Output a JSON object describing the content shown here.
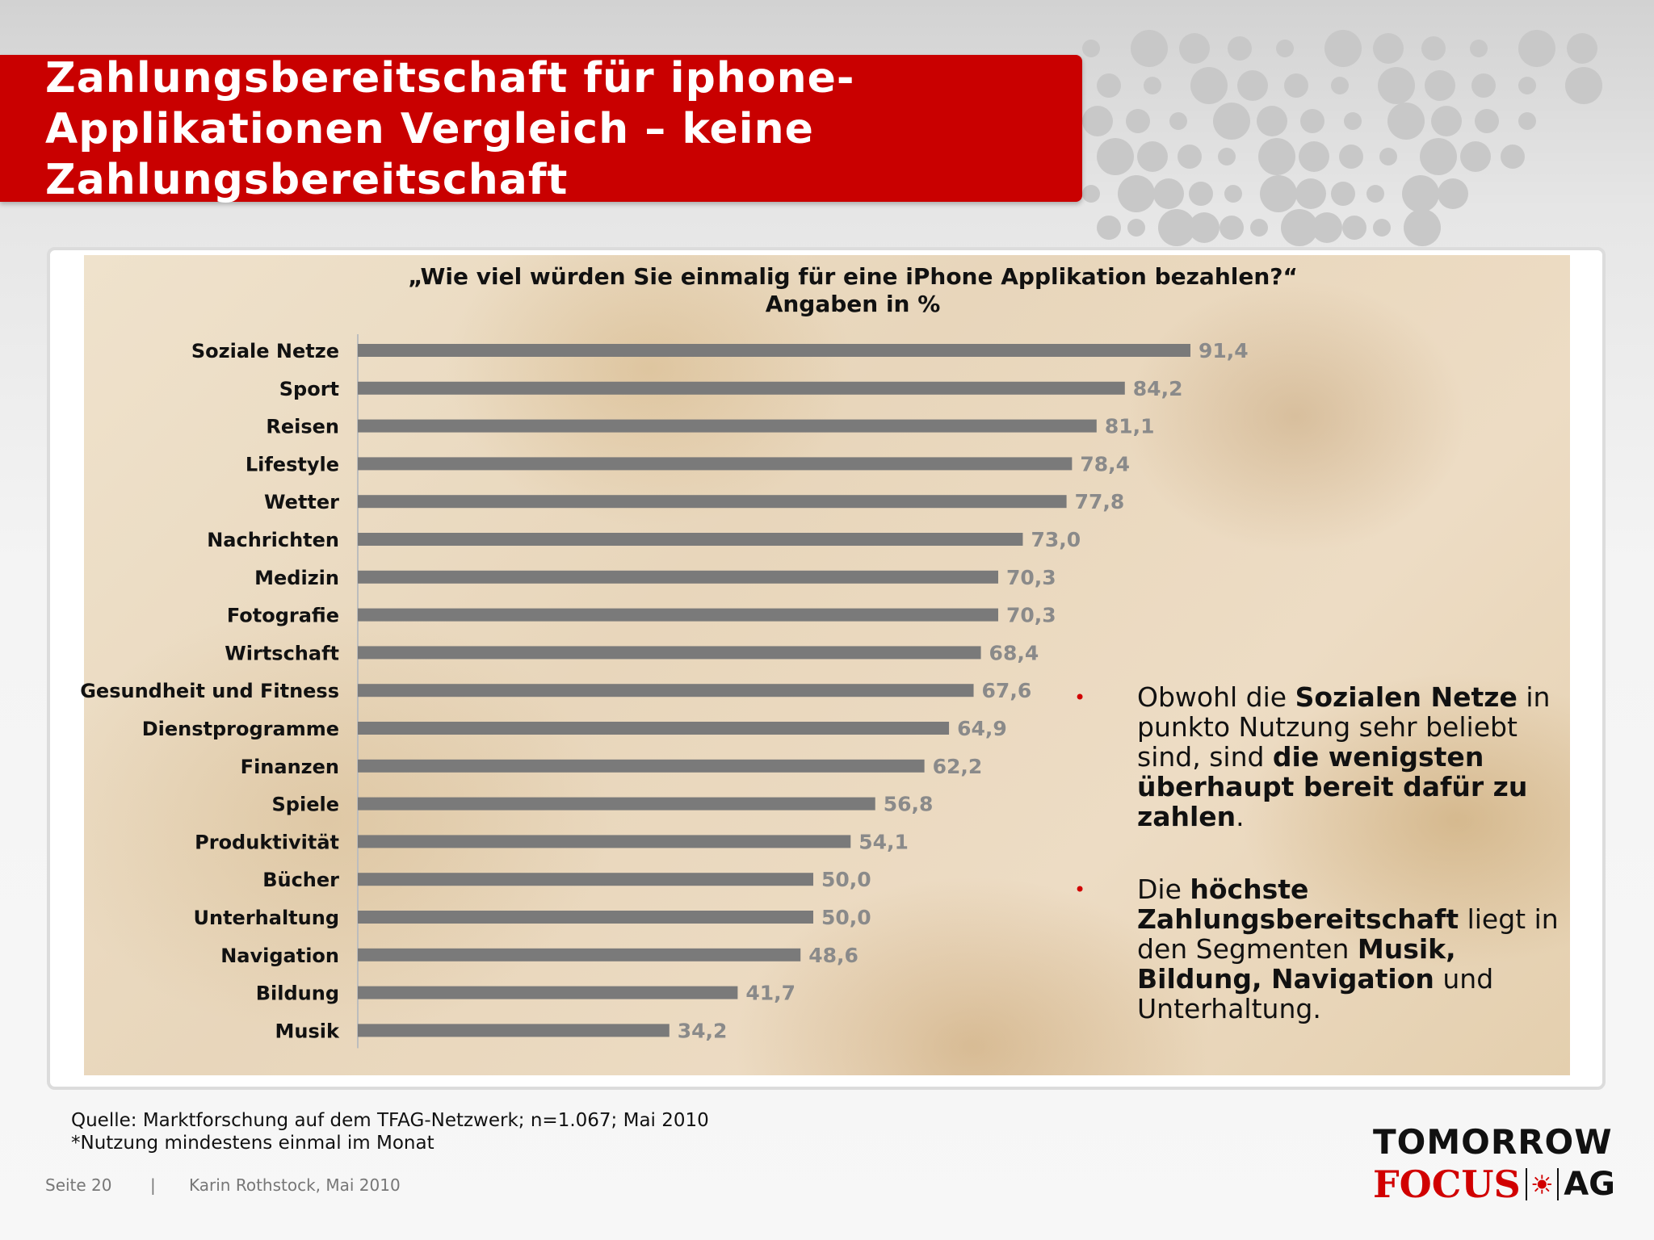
{
  "slide_title": "Zahlungsbereitschaft für iphone-Applikationen Vergleich – keine Zahlungsbereitschaft",
  "colors": {
    "title_bar": "#c90000",
    "bar": "#7a7a7a",
    "bullet": "#d10000"
  },
  "chart_data": {
    "type": "bar",
    "orientation": "horizontal",
    "title": "„Wie viel würden Sie einmalig für eine iPhone Applikation bezahlen?“",
    "subtitle": "Angaben in %",
    "categories": [
      "Soziale Netze",
      "Sport",
      "Reisen",
      "Lifestyle",
      "Wetter",
      "Nachrichten",
      "Medizin",
      "Fotografie",
      "Wirtschaft",
      "Gesundheit und Fitness",
      "Dienstprogramme",
      "Finanzen",
      "Spiele",
      "Produktivität",
      "Bücher",
      "Unterhaltung",
      "Navigation",
      "Bildung",
      "Musik"
    ],
    "values": [
      91.4,
      84.2,
      81.1,
      78.4,
      77.8,
      73.0,
      70.3,
      70.3,
      68.4,
      67.6,
      64.9,
      62.2,
      56.8,
      54.1,
      50.0,
      50.0,
      48.6,
      41.7,
      34.2
    ],
    "value_labels": [
      "91,4",
      "84,2",
      "81,1",
      "78,4",
      "77,8",
      "73,0",
      "70,3",
      "70,3",
      "68,4",
      "67,6",
      "64,9",
      "62,2",
      "56,8",
      "54,1",
      "50,0",
      "50,0",
      "48,6",
      "41,7",
      "34,2"
    ],
    "xlim": [
      0,
      100
    ],
    "grid": false,
    "legend": "none"
  },
  "notes": [
    {
      "bullet": "•",
      "parts": [
        {
          "text": "Obwohl die ",
          "bold": false
        },
        {
          "text": "Sozialen Netze",
          "bold": true
        },
        {
          "text": " in punkto Nutzung sehr beliebt sind, sind ",
          "bold": false
        },
        {
          "text": "die wenigsten überhaupt bereit dafür zu zahlen",
          "bold": true
        },
        {
          "text": ".",
          "bold": false
        }
      ]
    },
    {
      "bullet": "•",
      "parts": [
        {
          "text": "Die ",
          "bold": false
        },
        {
          "text": "höchste Zahlungsbereitschaft",
          "bold": true
        },
        {
          "text": " liegt in den Segmenten ",
          "bold": false
        },
        {
          "text": "Musik, Bildung, Navigation",
          "bold": true
        },
        {
          "text": " und Unterhaltung.",
          "bold": false
        }
      ]
    }
  ],
  "source": "Quelle: Marktforschung auf dem TFAG-Netzwerk; n=1.067; Mai 2010",
  "footnote": "*Nutzung mindestens einmal im Monat",
  "footer": {
    "page": "Seite 20",
    "separator": "|",
    "author": "Karin Rothstock, Mai 2010"
  },
  "logo": {
    "line1": "TOMORROW",
    "line2a": "FOCUS",
    "line2b": "AG"
  }
}
